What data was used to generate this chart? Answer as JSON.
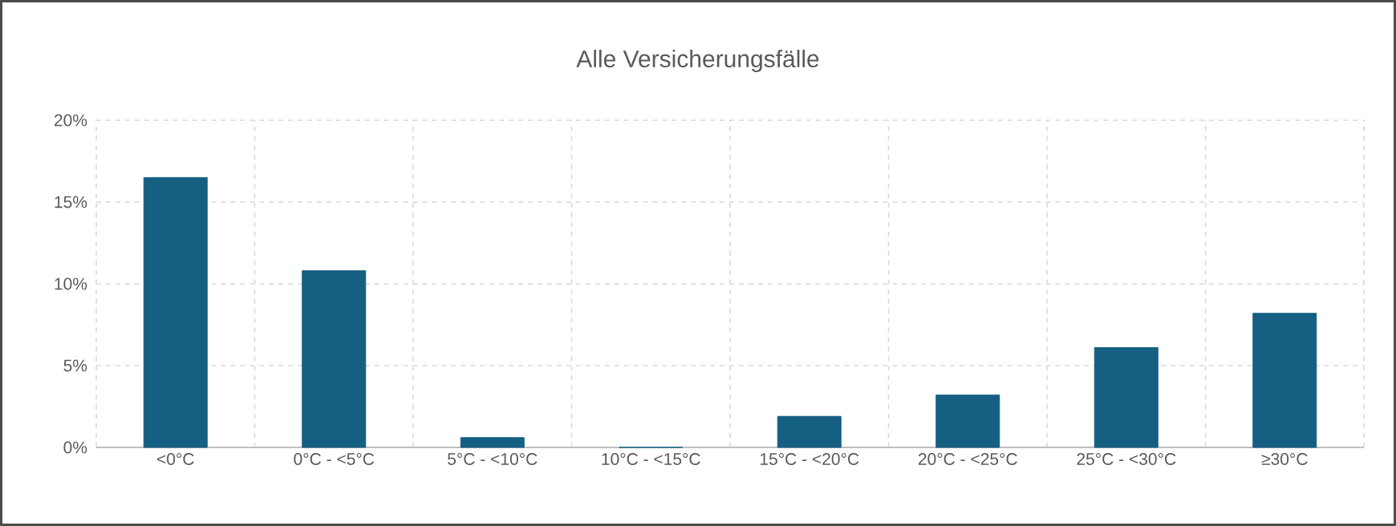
{
  "chart_data": {
    "type": "bar",
    "title": "Alle Versicherungsfälle",
    "categories": [
      "<0°C",
      "0°C - <5°C",
      "5°C - <10°C",
      "10°C - <15°C",
      "15°C - <20°C",
      "20°C - <25°C",
      "25°C - <30°C",
      "≥30°C"
    ],
    "values": [
      16.5,
      10.8,
      0.6,
      0,
      1.9,
      3.2,
      6.1,
      8.2
    ],
    "color": "#155f82",
    "ylim": [
      0,
      20
    ],
    "yticks": [
      {
        "value": 0,
        "label": "0%"
      },
      {
        "value": 5,
        "label": "5%"
      },
      {
        "value": 10,
        "label": "10%"
      },
      {
        "value": 15,
        "label": "15%"
      },
      {
        "value": 20,
        "label": "20%"
      }
    ],
    "grid": true
  }
}
